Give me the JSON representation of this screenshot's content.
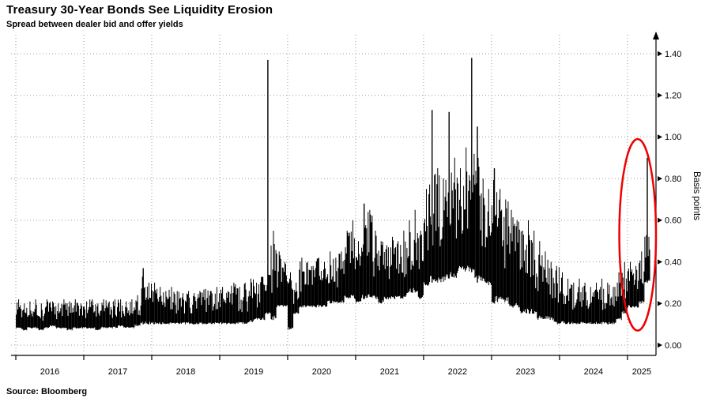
{
  "header": {
    "title": "Treasury 30-Year Bonds See Liquidity Erosion",
    "subtitle": "Spread between dealer bid and offer yields"
  },
  "footer": {
    "source": "Source: Bloomberg"
  },
  "colors": {
    "series": "#000000",
    "grid": "#999999",
    "axis": "#000000",
    "annotation": "#ee0000",
    "background": "#ffffff"
  },
  "chart_data": {
    "type": "line",
    "title": "Treasury 30-Year Bonds See Liquidity Erosion",
    "subtitle": "Spread between dealer bid and offer yields",
    "ylabel": "Basis points",
    "y_ticks": [
      "0.00",
      "0.20",
      "0.40",
      "0.60",
      "0.80",
      "1.00",
      "1.20",
      "1.40"
    ],
    "ylim": [
      0,
      1.48
    ],
    "x_ticks": [
      2016,
      2017,
      2018,
      2019,
      2020,
      2021,
      2022,
      2023,
      2024,
      2025
    ],
    "xlim": [
      2015.93,
      2025.42
    ],
    "grid": "dashed",
    "legend": "none",
    "start_month": "2016-01",
    "band_low": [
      0.08,
      0.07,
      0.08,
      0.08,
      0.07,
      0.08,
      0.09,
      0.08,
      0.08,
      0.07,
      0.08,
      0.08,
      0.08,
      0.08,
      0.07,
      0.08,
      0.08,
      0.08,
      0.09,
      0.08,
      0.08,
      0.09,
      0.1,
      0.1,
      0.1,
      0.1,
      0.1,
      0.1,
      0.1,
      0.1,
      0.1,
      0.1,
      0.1,
      0.1,
      0.1,
      0.1,
      0.1,
      0.1,
      0.1,
      0.1,
      0.1,
      0.11,
      0.12,
      0.12,
      0.15,
      0.12,
      0.18,
      0.18,
      0.07,
      0.15,
      0.18,
      0.18,
      0.18,
      0.18,
      0.18,
      0.2,
      0.2,
      0.2,
      0.22,
      0.22,
      0.2,
      0.22,
      0.22,
      0.22,
      0.2,
      0.22,
      0.22,
      0.22,
      0.22,
      0.25,
      0.25,
      0.22,
      0.28,
      0.3,
      0.3,
      0.3,
      0.32,
      0.32,
      0.35,
      0.35,
      0.35,
      0.3,
      0.3,
      0.28,
      0.2,
      0.2,
      0.2,
      0.18,
      0.18,
      0.15,
      0.15,
      0.15,
      0.12,
      0.12,
      0.12,
      0.1,
      0.1,
      0.1,
      0.1,
      0.1,
      0.1,
      0.1,
      0.1,
      0.1,
      0.1,
      0.1,
      0.12,
      0.15,
      0.18,
      0.18,
      0.2,
      0.3
    ],
    "band_high": [
      0.22,
      0.2,
      0.21,
      0.22,
      0.2,
      0.22,
      0.21,
      0.2,
      0.22,
      0.21,
      0.22,
      0.2,
      0.21,
      0.22,
      0.2,
      0.22,
      0.21,
      0.22,
      0.22,
      0.21,
      0.22,
      0.24,
      0.35,
      0.3,
      0.3,
      0.28,
      0.26,
      0.28,
      0.26,
      0.25,
      0.26,
      0.25,
      0.26,
      0.27,
      0.26,
      0.28,
      0.28,
      0.26,
      0.3,
      0.28,
      0.3,
      0.32,
      0.3,
      0.33,
      0.38,
      0.55,
      0.45,
      0.4,
      0.35,
      0.3,
      0.42,
      0.4,
      0.38,
      0.42,
      0.4,
      0.45,
      0.42,
      0.45,
      0.55,
      0.6,
      0.5,
      0.6,
      0.65,
      0.55,
      0.5,
      0.48,
      0.52,
      0.5,
      0.55,
      0.6,
      0.65,
      0.55,
      0.75,
      0.85,
      0.85,
      0.8,
      0.85,
      0.9,
      0.85,
      0.95,
      0.95,
      0.9,
      0.8,
      0.75,
      0.8,
      0.75,
      0.7,
      0.65,
      0.6,
      0.55,
      0.6,
      0.55,
      0.5,
      0.45,
      0.4,
      0.38,
      0.35,
      0.32,
      0.3,
      0.32,
      0.3,
      0.28,
      0.3,
      0.32,
      0.3,
      0.28,
      0.35,
      0.4,
      0.4,
      0.38,
      0.45,
      0.55
    ],
    "spikes": [
      {
        "month": "2017-11",
        "value": 0.37
      },
      {
        "month": "2019-09",
        "value": 1.37
      },
      {
        "month": "2021-02",
        "value": 0.68
      },
      {
        "month": "2022-02",
        "value": 1.13
      },
      {
        "month": "2022-05",
        "value": 1.12
      },
      {
        "month": "2022-09",
        "value": 1.38
      },
      {
        "month": "2022-10",
        "value": 1.05
      },
      {
        "month": "2023-01",
        "value": 0.85
      },
      {
        "month": "2025-04",
        "value": 0.9
      }
    ],
    "annotation_ellipse": {
      "x_center": 2025.15,
      "y_center": 0.53,
      "x_radius_years": 0.27,
      "y_radius_value": 0.46
    }
  }
}
